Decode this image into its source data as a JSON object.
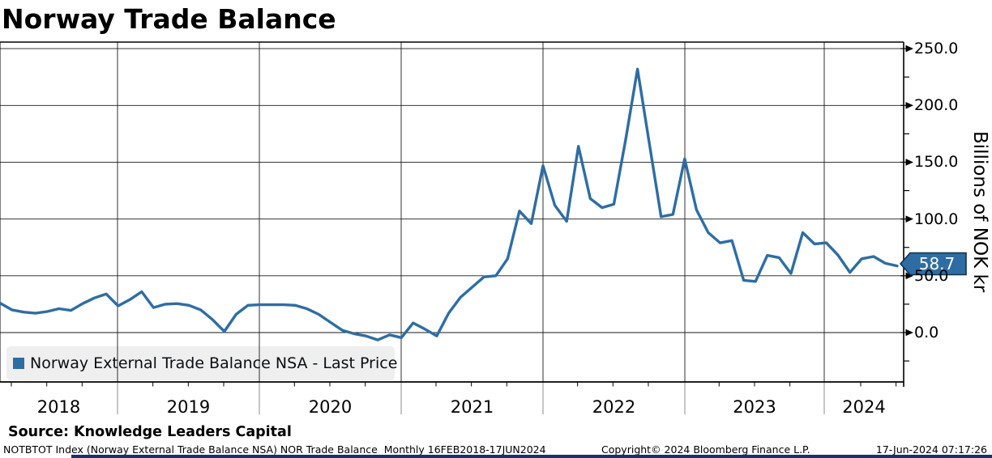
{
  "title": "Norway Trade Balance",
  "legend": {
    "label": "Norway External Trade Balance NSA - Last Price"
  },
  "last_price_badge": "58.7",
  "y_axis": {
    "title": "Billions of NOK kr",
    "tick_labels": [
      "250.0",
      "200.0",
      "150.0",
      "100.0",
      "50.0",
      "0.0"
    ]
  },
  "x_axis": {
    "tick_labels": [
      "2018",
      "2019",
      "2020",
      "2021",
      "2022",
      "2023",
      "2024"
    ]
  },
  "footer": {
    "source": "Source: Knowledge Leaders Capital",
    "descriptor": "NOTBTOT Index (Norway External Trade Balance NSA) NOR Trade Balance  Monthly 16FEB2018-17JUN2024",
    "copyright": "Copyright© 2024 Bloomberg Finance L.P.",
    "timestamp": "17-Jun-2024 07:17:26"
  },
  "colors": {
    "line": "#2e6da4",
    "badge_fill": "#2e6da4",
    "badge_border": "#12314f",
    "badge_text": "#ffffff",
    "grid": "#1a1a1a",
    "axis": "#000000",
    "year_line_below_axis": "#8c8c8c",
    "legend_bg": "#efefef",
    "legend_swatch": "#2e6da4",
    "bottom_bar": "#1c2e6b",
    "text": "#000000"
  },
  "chart_data": {
    "type": "line",
    "title": "Norway Trade Balance",
    "ylabel": "Billions of NOK kr",
    "frequency": "monthly",
    "x_start": "2018-02",
    "x_end": "2024-06",
    "x_year_ticks": [
      2018,
      2019,
      2020,
      2021,
      2022,
      2023,
      2024
    ],
    "y_major_ticks": [
      0,
      50,
      100,
      150,
      200,
      250
    ],
    "y_minor_ticks": [
      -25,
      25,
      75,
      125,
      175,
      225
    ],
    "ylim": [
      -43,
      256
    ],
    "grid": true,
    "legend_position": "bottom-left",
    "last_price": 58.7,
    "series": [
      {
        "name": "Norway External Trade Balance NSA - Last Price",
        "values": [
          26,
          20,
          18,
          17,
          18.5,
          21,
          19.5,
          25.5,
          30.5,
          34,
          23.5,
          29,
          36,
          22,
          25,
          25.5,
          24,
          20,
          11.5,
          1,
          16,
          24,
          24.5,
          24.5,
          24.5,
          24,
          21,
          16,
          9,
          2,
          -1,
          -3,
          -6.5,
          -2,
          -4.5,
          8.5,
          3,
          -3,
          17,
          31,
          40,
          49,
          50,
          65,
          107,
          96,
          147,
          112,
          98,
          164,
          118,
          110,
          113,
          170,
          232,
          167,
          102,
          104,
          153,
          108,
          88,
          79,
          81,
          46,
          45,
          68,
          66,
          52,
          88,
          78,
          79,
          68,
          53,
          65,
          67,
          61,
          58.7
        ]
      }
    ]
  }
}
